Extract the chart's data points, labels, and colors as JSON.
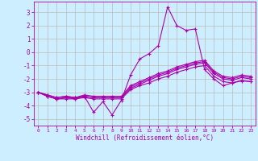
{
  "xlabel": "Windchill (Refroidissement éolien,°C)",
  "background_color": "#cceeff",
  "line_color": "#aa00aa",
  "grid_color": "#bbbbbb",
  "xlim": [
    -0.5,
    23.5
  ],
  "ylim": [
    -5.5,
    3.8
  ],
  "yticks": [
    -5,
    -4,
    -3,
    -2,
    -1,
    0,
    1,
    2,
    3
  ],
  "xticks": [
    0,
    1,
    2,
    3,
    4,
    5,
    6,
    7,
    8,
    9,
    10,
    11,
    12,
    13,
    14,
    15,
    16,
    17,
    18,
    19,
    20,
    21,
    22,
    23
  ],
  "lines": [
    [
      -3.0,
      -3.3,
      -3.5,
      -3.5,
      -3.5,
      -3.3,
      -4.5,
      -3.7,
      -4.7,
      -3.6,
      -1.7,
      -0.5,
      -0.1,
      0.5,
      3.4,
      2.0,
      1.65,
      1.75,
      -1.3,
      -2.0,
      -2.5,
      -2.3,
      -2.15,
      -2.2
    ],
    [
      -3.0,
      -3.3,
      -3.5,
      -3.4,
      -3.5,
      -3.4,
      -3.5,
      -3.5,
      -3.5,
      -3.5,
      -2.8,
      -2.5,
      -2.3,
      -2.0,
      -1.8,
      -1.5,
      -1.3,
      -1.1,
      -1.0,
      -1.8,
      -2.2,
      -2.3,
      -2.1,
      -2.2
    ],
    [
      -3.0,
      -3.3,
      -3.5,
      -3.4,
      -3.4,
      -3.3,
      -3.4,
      -3.4,
      -3.4,
      -3.4,
      -2.7,
      -2.4,
      -2.1,
      -1.8,
      -1.6,
      -1.3,
      -1.1,
      -0.9,
      -0.8,
      -1.6,
      -2.0,
      -2.1,
      -1.9,
      -2.0
    ],
    [
      -3.0,
      -3.2,
      -3.4,
      -3.3,
      -3.4,
      -3.2,
      -3.3,
      -3.3,
      -3.3,
      -3.3,
      -2.5,
      -2.2,
      -1.9,
      -1.6,
      -1.4,
      -1.1,
      -0.9,
      -0.7,
      -0.6,
      -1.4,
      -1.8,
      -1.9,
      -1.7,
      -1.8
    ],
    [
      -3.0,
      -3.2,
      -3.4,
      -3.3,
      -3.4,
      -3.3,
      -3.4,
      -3.4,
      -3.4,
      -3.4,
      -2.6,
      -2.3,
      -2.0,
      -1.7,
      -1.5,
      -1.2,
      -1.0,
      -0.8,
      -0.7,
      -1.5,
      -1.9,
      -2.0,
      -1.8,
      -1.9
    ]
  ]
}
